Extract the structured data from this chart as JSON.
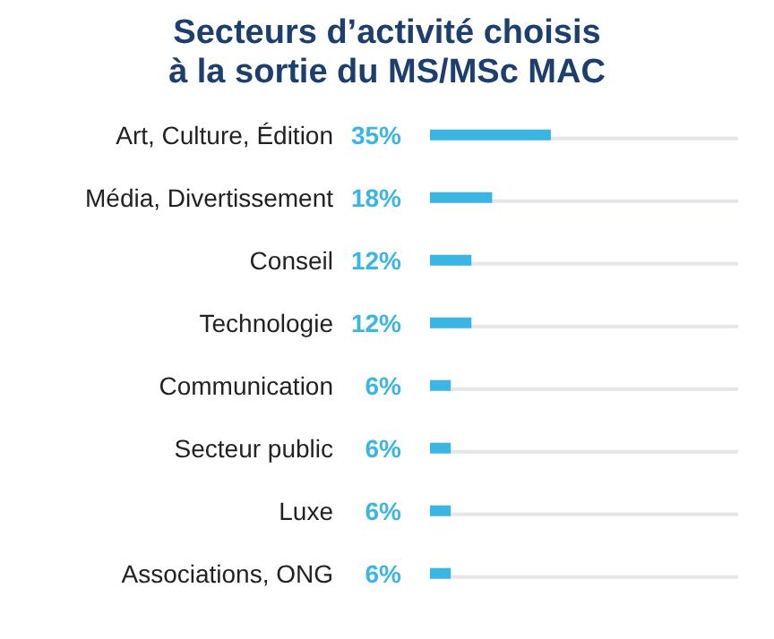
{
  "chart_data": {
    "type": "bar",
    "orientation": "horizontal",
    "title": "Secteurs d’activité choisis\nà la sortie du MS/MSc MAC",
    "categories": [
      "Art, Culture, Édition",
      "Média, Divertissement",
      "Conseil",
      "Technologie",
      "Communication",
      "Secteur public",
      "Luxe",
      "Associations, ONG"
    ],
    "values": [
      35,
      18,
      12,
      12,
      6,
      6,
      6,
      6
    ],
    "color": "#3bb5e4",
    "value_labels": [
      "35%",
      "18%",
      "12%",
      "12%",
      "6%",
      "6%",
      "6%",
      "6%"
    ]
  }
}
